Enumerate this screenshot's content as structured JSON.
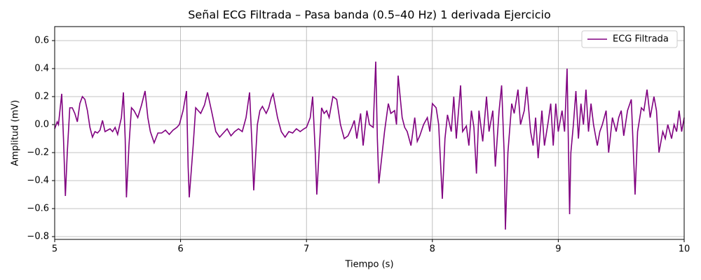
{
  "chart_data": {
    "type": "line",
    "title": "Señal ECG Filtrada – Pasa banda (0.5–40 Hz) 1 derivada Ejercicio",
    "x_label": "Tiempo (s)",
    "y_label": "Amplitud (mV)",
    "xlim": [
      5,
      10
    ],
    "xticks": [
      5,
      6,
      7,
      8,
      9,
      10
    ],
    "ylim": [
      -0.82,
      0.7
    ],
    "yticks": [
      {
        "value": -0.8,
        "label": "−0.8"
      },
      {
        "value": -0.6,
        "label": "−0.6"
      },
      {
        "value": -0.4,
        "label": "−0.4"
      },
      {
        "value": -0.2,
        "label": "−0.2"
      },
      {
        "value": 0,
        "label": "0.0"
      },
      0.2,
      0.4,
      0.6
    ],
    "grid": true,
    "legend": "upper right",
    "series": [
      {
        "name": "ECG Filtrada",
        "color": "#800080",
        "x": [
          5.0,
          5.02,
          5.03,
          5.056,
          5.07,
          5.085,
          5.1,
          5.12,
          5.14,
          5.16,
          5.18,
          5.2,
          5.22,
          5.24,
          5.26,
          5.28,
          5.3,
          5.32,
          5.34,
          5.36,
          5.38,
          5.4,
          5.42,
          5.44,
          5.46,
          5.48,
          5.5,
          5.53,
          5.546,
          5.56,
          5.57,
          5.59,
          5.61,
          5.63,
          5.66,
          5.69,
          5.718,
          5.74,
          5.76,
          5.79,
          5.82,
          5.85,
          5.88,
          5.91,
          5.94,
          5.97,
          5.99,
          6.02,
          6.047,
          6.06,
          6.069,
          6.1,
          6.12,
          6.14,
          6.16,
          6.19,
          6.214,
          6.25,
          6.28,
          6.31,
          6.34,
          6.37,
          6.4,
          6.43,
          6.46,
          6.49,
          6.52,
          6.548,
          6.565,
          6.581,
          6.61,
          6.63,
          6.65,
          6.68,
          6.7,
          6.72,
          6.735,
          6.77,
          6.8,
          6.83,
          6.86,
          6.89,
          6.92,
          6.95,
          6.98,
          7.0,
          7.03,
          7.049,
          7.07,
          7.082,
          7.1,
          7.12,
          7.14,
          7.16,
          7.18,
          7.21,
          7.24,
          7.27,
          7.3,
          7.33,
          7.36,
          7.38,
          7.4,
          7.43,
          7.45,
          7.48,
          7.5,
          7.53,
          7.55,
          7.563,
          7.575,
          7.62,
          7.65,
          7.67,
          7.7,
          7.715,
          7.728,
          7.76,
          7.78,
          7.8,
          7.83,
          7.86,
          7.88,
          7.9,
          7.93,
          7.96,
          7.98,
          8.0,
          8.03,
          8.05,
          8.079,
          8.1,
          8.12,
          8.15,
          8.17,
          8.19,
          8.224,
          8.24,
          8.27,
          8.29,
          8.31,
          8.33,
          8.35,
          8.37,
          8.4,
          8.43,
          8.45,
          8.48,
          8.5,
          8.53,
          8.55,
          8.57,
          8.58,
          8.6,
          8.63,
          8.65,
          8.68,
          8.7,
          8.73,
          8.75,
          8.78,
          8.8,
          8.82,
          8.84,
          8.87,
          8.89,
          8.92,
          8.94,
          8.96,
          8.98,
          9.0,
          9.03,
          9.05,
          9.07,
          9.09,
          9.1,
          9.12,
          9.14,
          9.16,
          9.18,
          9.2,
          9.22,
          9.24,
          9.26,
          9.28,
          9.31,
          9.33,
          9.35,
          9.38,
          9.4,
          9.43,
          9.46,
          9.48,
          9.5,
          9.52,
          9.55,
          9.58,
          9.61,
          9.63,
          9.66,
          9.68,
          9.705,
          9.73,
          9.76,
          9.78,
          9.8,
          9.83,
          9.85,
          9.87,
          9.9,
          9.92,
          9.94,
          9.96,
          9.98,
          10.0
        ],
        "values": [
          -0.03,
          0.02,
          0.0,
          0.22,
          -0.1,
          -0.51,
          -0.2,
          0.12,
          0.12,
          0.08,
          0.02,
          0.15,
          0.2,
          0.18,
          0.1,
          -0.02,
          -0.09,
          -0.05,
          -0.06,
          -0.04,
          0.03,
          -0.05,
          -0.04,
          -0.03,
          -0.05,
          -0.02,
          -0.07,
          0.05,
          0.23,
          -0.1,
          -0.52,
          -0.15,
          0.12,
          0.1,
          0.05,
          0.14,
          0.24,
          0.05,
          -0.05,
          -0.13,
          -0.06,
          -0.06,
          -0.04,
          -0.07,
          -0.04,
          -0.02,
          0.0,
          0.1,
          0.24,
          -0.3,
          -0.52,
          -0.15,
          0.12,
          0.1,
          0.08,
          0.14,
          0.23,
          0.08,
          -0.05,
          -0.09,
          -0.06,
          -0.03,
          -0.08,
          -0.05,
          -0.03,
          -0.05,
          0.05,
          0.23,
          -0.1,
          -0.47,
          0.0,
          0.1,
          0.13,
          0.08,
          0.12,
          0.19,
          0.22,
          0.05,
          -0.05,
          -0.09,
          -0.05,
          -0.06,
          -0.03,
          -0.05,
          -0.03,
          -0.02,
          0.05,
          0.2,
          -0.2,
          -0.5,
          -0.2,
          0.12,
          0.08,
          0.1,
          0.05,
          0.2,
          0.18,
          0.0,
          -0.1,
          -0.08,
          -0.02,
          0.03,
          -0.1,
          0.08,
          -0.15,
          0.1,
          0.0,
          -0.02,
          0.45,
          -0.1,
          -0.42,
          -0.05,
          0.15,
          0.08,
          0.1,
          0.0,
          0.35,
          0.05,
          -0.02,
          -0.05,
          -0.15,
          0.05,
          -0.12,
          -0.08,
          0.0,
          0.05,
          -0.05,
          0.15,
          0.12,
          0.0,
          -0.53,
          -0.1,
          0.07,
          -0.05,
          0.2,
          -0.1,
          0.28,
          -0.05,
          -0.01,
          -0.15,
          0.1,
          -0.02,
          -0.35,
          0.1,
          -0.12,
          0.2,
          -0.05,
          0.1,
          -0.3,
          0.1,
          0.28,
          -0.2,
          -0.75,
          -0.2,
          0.15,
          0.08,
          0.25,
          0.0,
          0.1,
          0.27,
          -0.05,
          -0.15,
          0.05,
          -0.24,
          0.1,
          -0.15,
          0.02,
          0.15,
          -0.15,
          0.15,
          -0.05,
          0.1,
          -0.05,
          0.4,
          -0.64,
          -0.2,
          0.0,
          0.24,
          -0.1,
          0.15,
          0.0,
          0.25,
          -0.05,
          0.15,
          0.0,
          -0.15,
          -0.05,
          0.0,
          0.1,
          -0.2,
          0.05,
          -0.05,
          0.05,
          0.1,
          -0.08,
          0.1,
          0.18,
          -0.5,
          -0.05,
          0.12,
          0.1,
          0.25,
          0.05,
          0.2,
          0.1,
          -0.2,
          -0.05,
          -0.1,
          0.0,
          -0.1,
          0.0,
          -0.05,
          0.1,
          -0.05,
          0.05
        ]
      }
    ]
  }
}
